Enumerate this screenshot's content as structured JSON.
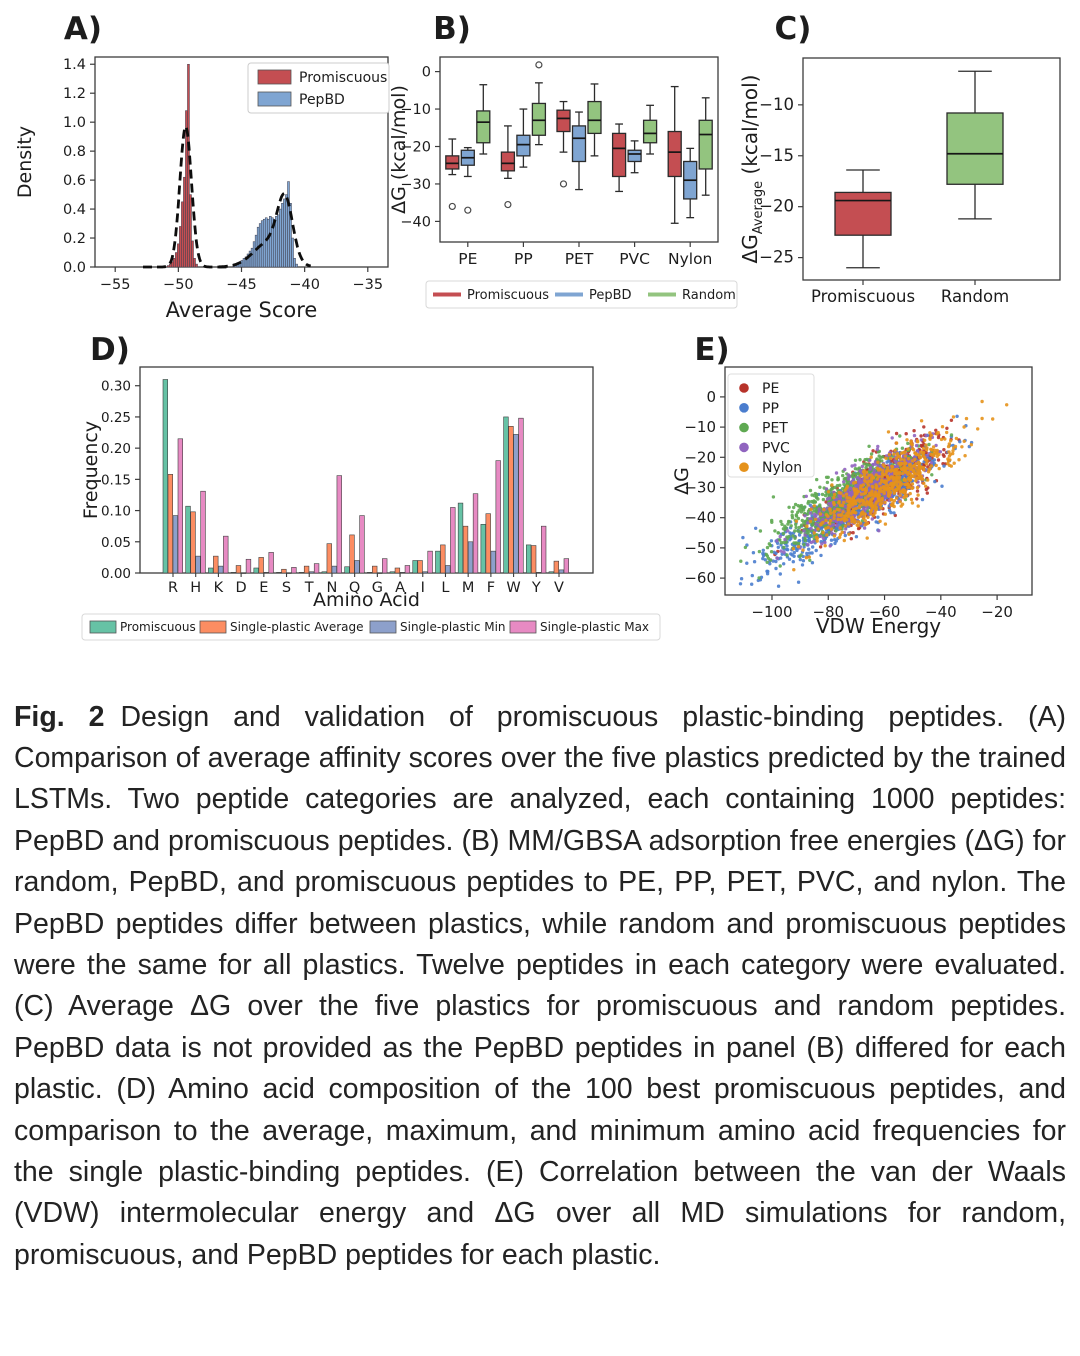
{
  "caption": {
    "label": "Fig. 2",
    "text": "Design and validation of promiscuous plastic-binding peptides. (A) Comparison of average affinity scores over the five plastics predicted by the trained LSTMs. Two peptide categories are analyzed, each containing 1000 peptides: PepBD and promiscuous peptides. (B) MM/GBSA adsorption free energies (ΔG) for random, PepBD, and promiscuous peptides to PE, PP, PET, PVC, and nylon. The PepBD peptides differ between plastics, while random and promiscuous peptides were the same for all plastics. Twelve peptides in each category were evaluated. (C) Average ΔG over the five plastics for promiscuous and random peptides. PepBD data is not provided as the PepBD peptides in panel (B) differed for each plastic. (D) Amino acid composition of the 100 best promiscuous peptides, and comparison to the average, maximum, and minimum amino acid frequencies for the single plastic-binding peptides. (E) Correlation between the van der Waals (VDW) intermolecular energy and ΔG over all MD simulations for random, promiscuous, and PepBD peptides for each plastic."
  },
  "chart_data": [
    {
      "id": "A",
      "type": "histogram",
      "title": "A)",
      "xlabel": "Average Score",
      "ylabel": "Density",
      "xlim": [
        -56.6,
        -33.4
      ],
      "ylim": [
        0,
        1.45
      ],
      "xticks": [
        -55,
        -50,
        -45,
        -40,
        -35
      ],
      "yticks": [
        0.0,
        0.2,
        0.4,
        0.6,
        0.8,
        1.0,
        1.2,
        1.4
      ],
      "bar_width": 0.16,
      "series": [
        {
          "name": "Promiscuous",
          "color": "#c44e52",
          "kde_range": [
            -52.8,
            -46.0
          ],
          "kde": [
            [
              -49.42,
              0.46,
              0.97
            ]
          ],
          "bars": [
            [
              -50.8,
              0.01
            ],
            [
              -50.64,
              0.018
            ],
            [
              -50.48,
              0.035
            ],
            [
              -50.32,
              0.06
            ],
            [
              -50.16,
              0.1
            ],
            [
              -50.0,
              0.16
            ],
            [
              -49.84,
              0.28
            ],
            [
              -49.68,
              0.45
            ],
            [
              -49.52,
              0.62
            ],
            [
              -49.36,
              1.08
            ],
            [
              -49.2,
              1.4
            ],
            [
              -49.04,
              0.5
            ],
            [
              -48.88,
              0.18
            ],
            [
              -48.72,
              0.06
            ],
            [
              -48.56,
              0.02
            ]
          ]
        },
        {
          "name": "PepBD",
          "color": "#7fa5d2",
          "kde_range": [
            -46.8,
            -39.5
          ],
          "kde": [
            [
              -41.55,
              0.6,
              0.4
            ],
            [
              -42.8,
              1.25,
              0.17
            ]
          ],
          "bars": [
            [
              -45.6,
              0.01
            ],
            [
              -45.44,
              0.015
            ],
            [
              -45.28,
              0.02
            ],
            [
              -45.12,
              0.03
            ],
            [
              -44.96,
              0.045
            ],
            [
              -44.8,
              0.06
            ],
            [
              -44.64,
              0.07
            ],
            [
              -44.48,
              0.09
            ],
            [
              -44.32,
              0.11
            ],
            [
              -44.16,
              0.13
            ],
            [
              -44.0,
              0.175
            ],
            [
              -43.84,
              0.22
            ],
            [
              -43.68,
              0.275
            ],
            [
              -43.52,
              0.3
            ],
            [
              -43.36,
              0.32
            ],
            [
              -43.2,
              0.33
            ],
            [
              -43.04,
              0.34
            ],
            [
              -42.88,
              0.33
            ],
            [
              -42.72,
              0.35
            ],
            [
              -42.56,
              0.34
            ],
            [
              -42.4,
              0.33
            ],
            [
              -42.24,
              0.35
            ],
            [
              -42.08,
              0.36
            ],
            [
              -41.92,
              0.4
            ],
            [
              -41.76,
              0.44
            ],
            [
              -41.6,
              0.47
            ],
            [
              -41.44,
              0.5
            ],
            [
              -41.28,
              0.59
            ],
            [
              -41.12,
              0.44
            ],
            [
              -40.96,
              0.2
            ],
            [
              -40.8,
              0.06
            ],
            [
              -40.64,
              0.02
            ]
          ]
        }
      ]
    },
    {
      "id": "B",
      "type": "grouped_box",
      "title": "B)",
      "ylabel": "ΔG (kcal/mol)",
      "categories": [
        "PE",
        "PP",
        "PET",
        "PVC",
        "Nylon"
      ],
      "ylim": [
        -45.5,
        3.9
      ],
      "yticks": [
        0,
        -10,
        -20,
        -30,
        -40
      ],
      "series": [
        {
          "name": "Promiscuous",
          "color": "#c44e52",
          "boxes": [
            {
              "lo": -27.5,
              "q1": -26.0,
              "med": -24.5,
              "q3": -22.5,
              "hi": -18.0,
              "out": [
                -36.0
              ]
            },
            {
              "lo": -28.5,
              "q1": -26.5,
              "med": -24.5,
              "q3": -21.5,
              "hi": -14.5,
              "out": [
                -35.5
              ]
            },
            {
              "lo": -21.5,
              "q1": -16.0,
              "med": -12.5,
              "q3": -10.3,
              "hi": -8.0,
              "out": [
                -30.0
              ]
            },
            {
              "lo": -32.0,
              "q1": -28.0,
              "med": -20.5,
              "q3": -16.5,
              "hi": -14.0,
              "out": []
            },
            {
              "lo": -40.5,
              "q1": -28.0,
              "med": -21.5,
              "q3": -16.0,
              "hi": -4.0,
              "out": []
            }
          ]
        },
        {
          "name": "PepBD",
          "color": "#7fa5d2",
          "boxes": [
            {
              "lo": -28.0,
              "q1": -25.0,
              "med": -23.0,
              "q3": -21.0,
              "hi": -20.3,
              "out": [
                -37.0
              ]
            },
            {
              "lo": -25.5,
              "q1": -22.5,
              "med": -19.5,
              "q3": -17.0,
              "hi": -10.0,
              "out": []
            },
            {
              "lo": -31.5,
              "q1": -24.0,
              "med": -17.8,
              "q3": -14.5,
              "hi": -10.8,
              "out": []
            },
            {
              "lo": -27.0,
              "q1": -24.0,
              "med": -22.0,
              "q3": -21.0,
              "hi": -18.5,
              "out": []
            },
            {
              "lo": -39.0,
              "q1": -34.0,
              "med": -29.0,
              "q3": -24.0,
              "hi": -20.5,
              "out": []
            }
          ]
        },
        {
          "name": "Random",
          "color": "#93c47f",
          "boxes": [
            {
              "lo": -22.0,
              "q1": -19.0,
              "med": -13.5,
              "q3": -10.5,
              "hi": -3.5,
              "out": []
            },
            {
              "lo": -19.5,
              "q1": -17.0,
              "med": -13.0,
              "q3": -8.5,
              "hi": -3.0,
              "out": [
                1.8
              ]
            },
            {
              "lo": -22.5,
              "q1": -16.5,
              "med": -13.0,
              "q3": -8.0,
              "hi": -3.3,
              "out": []
            },
            {
              "lo": -22.0,
              "q1": -19.0,
              "med": -16.5,
              "q3": -13.0,
              "hi": -9.0,
              "out": []
            },
            {
              "lo": -33.0,
              "q1": -26.0,
              "med": -16.8,
              "q3": -13.0,
              "hi": -7.0,
              "out": []
            }
          ]
        }
      ]
    },
    {
      "id": "C",
      "type": "box",
      "title": "C)",
      "ylabel_parts": [
        "ΔG",
        "Average",
        " (kcal/mol)"
      ],
      "categories": [
        "Promiscuous",
        "Random"
      ],
      "ylim": [
        -27.2,
        -5.4
      ],
      "yticks": [
        -10,
        -15,
        -20,
        -25
      ],
      "boxes": [
        {
          "name": "Promiscuous",
          "color": "#c44e52",
          "lo": -26.0,
          "q1": -22.8,
          "med": -19.4,
          "q3": -18.6,
          "hi": -16.4,
          "out": []
        },
        {
          "name": "Random",
          "color": "#93c47f",
          "lo": -21.2,
          "q1": -17.8,
          "med": -14.8,
          "q3": -10.8,
          "hi": -6.7,
          "out": []
        }
      ]
    },
    {
      "id": "D",
      "type": "grouped_bar",
      "title": "D)",
      "xlabel": "Amino Acid",
      "ylabel": "Frequency",
      "categories": [
        "R",
        "H",
        "K",
        "D",
        "E",
        "S",
        "T",
        "N",
        "Q",
        "G",
        "A",
        "I",
        "L",
        "M",
        "F",
        "W",
        "Y",
        "V"
      ],
      "ylim": [
        0,
        0.33
      ],
      "yticks": [
        0.0,
        0.05,
        0.1,
        0.15,
        0.2,
        0.25,
        0.3
      ],
      "series": [
        {
          "name": "Promiscuous",
          "color": "#66c2a5",
          "values": [
            0.31,
            0.107,
            0.008,
            0.001,
            0.008,
            0.001,
            0.001,
            0.002,
            0.01,
            0.001,
            0.002,
            0.02,
            0.035,
            0.112,
            0.078,
            0.25,
            0.045,
            0.002
          ]
        },
        {
          "name": "Single-plastic Average",
          "color": "#fc8d62",
          "values": [
            0.158,
            0.098,
            0.027,
            0.012,
            0.025,
            0.006,
            0.011,
            0.047,
            0.061,
            0.011,
            0.008,
            0.02,
            0.045,
            0.075,
            0.095,
            0.235,
            0.044,
            0.019
          ]
        },
        {
          "name": "Single-plastic Min",
          "color": "#8da0cb",
          "values": [
            0.092,
            0.027,
            0.011,
            0.0,
            0.001,
            0.0,
            0.002,
            0.011,
            0.02,
            0.0,
            0.001,
            0.002,
            0.012,
            0.05,
            0.035,
            0.222,
            0.001,
            0.005
          ]
        },
        {
          "name": "Single-plastic Max",
          "color": "#e78ac3",
          "values": [
            0.215,
            0.131,
            0.059,
            0.022,
            0.033,
            0.009,
            0.015,
            0.156,
            0.092,
            0.023,
            0.012,
            0.035,
            0.105,
            0.127,
            0.18,
            0.248,
            0.075,
            0.023
          ]
        }
      ]
    },
    {
      "id": "E",
      "type": "scatter",
      "title": "E)",
      "xlabel": "VDW Energy",
      "ylabel": "ΔG",
      "xlim": [
        -116.7,
        -7.6
      ],
      "ylim": [
        -65.6,
        9.9
      ],
      "xticks": [
        -100,
        -80,
        -60,
        -40,
        -20
      ],
      "yticks": [
        0,
        -10,
        -20,
        -30,
        -40,
        -50,
        -60
      ],
      "trend": {
        "slope": 0.57,
        "intercept": 6.0,
        "noise_sd": 4.3
      },
      "series": [
        {
          "name": "PE",
          "color": "#b7332a",
          "n": 600,
          "x_center": -62,
          "x_sd": 11,
          "y_offset": 0
        },
        {
          "name": "PP",
          "color": "#4a7dce",
          "n": 630,
          "x_center": -72,
          "x_sd": 16,
          "y_offset": -2
        },
        {
          "name": "PET",
          "color": "#5fa952",
          "n": 630,
          "x_center": -75,
          "x_sd": 12,
          "y_offset": 3
        },
        {
          "name": "PVC",
          "color": "#9064bf",
          "n": 540,
          "x_center": -67,
          "x_sd": 10,
          "y_offset": 0.5
        },
        {
          "name": "Nylon",
          "color": "#e5921b",
          "n": 600,
          "x_center": -59,
          "x_sd": 12,
          "y_offset": -1.5
        }
      ]
    }
  ]
}
